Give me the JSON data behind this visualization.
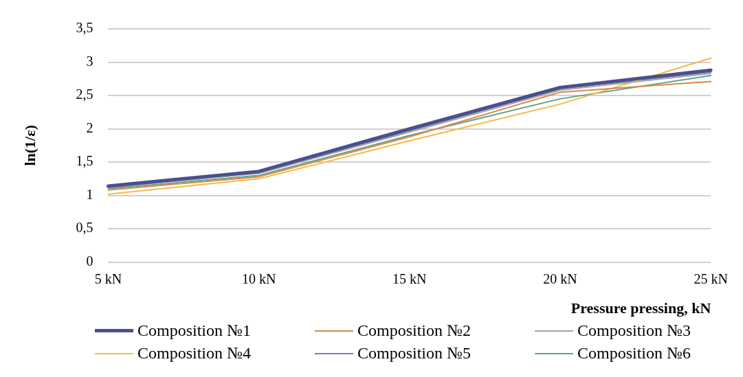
{
  "chart_data": {
    "type": "line",
    "xlabel": "Pressure pressing, kN",
    "ylabel": "ln(1/ε)",
    "categories": [
      "5 kN",
      "10 kN",
      "15 kN",
      "20 kN",
      "25 kN"
    ],
    "series": [
      {
        "name": "Composition №1",
        "color": "#4a4f8f",
        "values": [
          1.14,
          1.36,
          2.0,
          2.62,
          2.88
        ]
      },
      {
        "name": "Composition №2",
        "color": "#d9884a",
        "values": [
          1.08,
          1.28,
          1.88,
          2.55,
          2.71
        ]
      },
      {
        "name": "Composition №3",
        "color": "#a5a5a5",
        "values": [
          1.12,
          1.33,
          1.95,
          2.58,
          2.83
        ]
      },
      {
        "name": "Composition №4",
        "color": "#f5b942",
        "values": [
          1.02,
          1.25,
          1.82,
          2.37,
          3.06
        ]
      },
      {
        "name": "Composition №5",
        "color": "#7a7fb0",
        "values": [
          1.12,
          1.34,
          1.97,
          2.6,
          2.85
        ]
      },
      {
        "name": "Composition №6",
        "color": "#5aa58c",
        "values": [
          1.1,
          1.3,
          1.9,
          2.45,
          2.8
        ]
      }
    ],
    "ylim": [
      0,
      3.5
    ],
    "yticks": [
      0,
      {
        "value": 0.5,
        "label": "0,5"
      },
      1,
      {
        "value": 1.5,
        "label": "1,5"
      },
      2,
      {
        "value": 2.5,
        "label": "2,5"
      },
      3,
      {
        "value": 3.5,
        "label": "3,5"
      }
    ],
    "grid": "y",
    "legend": "bottom",
    "marker": "none",
    "line_style": "solid"
  }
}
